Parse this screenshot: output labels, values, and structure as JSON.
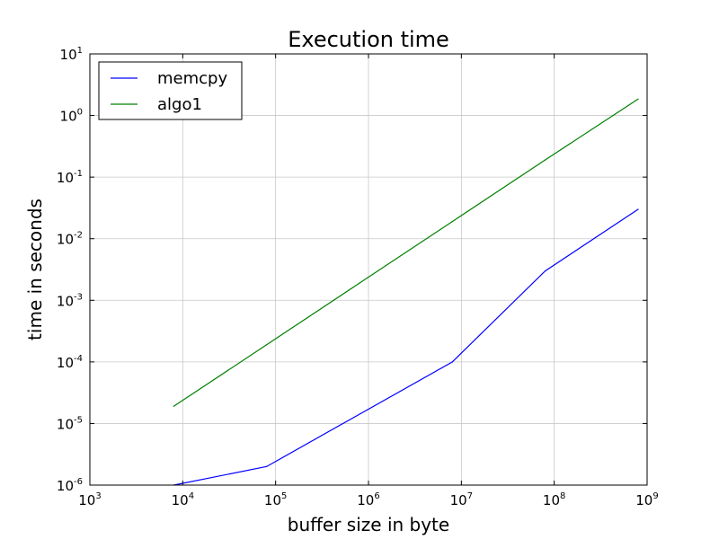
{
  "chart_data": {
    "type": "line",
    "title": "Execution time",
    "xlabel": "buffer size in byte",
    "ylabel": "time in seconds",
    "xscale": "log",
    "yscale": "log",
    "xlim": [
      1000,
      1000000000
    ],
    "ylim": [
      1e-06,
      10
    ],
    "x_ticks": [
      {
        "base": "10",
        "exp": "3",
        "value": 1000
      },
      {
        "base": "10",
        "exp": "4",
        "value": 10000
      },
      {
        "base": "10",
        "exp": "5",
        "value": 100000
      },
      {
        "base": "10",
        "exp": "6",
        "value": 1000000
      },
      {
        "base": "10",
        "exp": "7",
        "value": 10000000
      },
      {
        "base": "10",
        "exp": "8",
        "value": 100000000
      },
      {
        "base": "10",
        "exp": "9",
        "value": 1000000000
      }
    ],
    "y_ticks": [
      {
        "base": "10",
        "exp": "-6",
        "value": 1e-06
      },
      {
        "base": "10",
        "exp": "-5",
        "value": 1e-05
      },
      {
        "base": "10",
        "exp": "-4",
        "value": 0.0001
      },
      {
        "base": "10",
        "exp": "-3",
        "value": 0.001
      },
      {
        "base": "10",
        "exp": "-2",
        "value": 0.01
      },
      {
        "base": "10",
        "exp": "-1",
        "value": 0.1
      },
      {
        "base": "10",
        "exp": "0",
        "value": 1
      },
      {
        "base": "10",
        "exp": "1",
        "value": 10
      }
    ],
    "grid": true,
    "legend_position": "top-left",
    "series": [
      {
        "name": "memcpy",
        "color": "#0000ff",
        "x": [
          8000,
          80000,
          8000000,
          80000000,
          800000000
        ],
        "y": [
          1e-06,
          2e-06,
          0.0001,
          0.003,
          0.03
        ]
      },
      {
        "name": "algo1",
        "color": "#008000",
        "x": [
          8000,
          80000,
          800000,
          8000000,
          80000000,
          800000000
        ],
        "y": [
          1.9e-05,
          0.00019,
          0.0019,
          0.019,
          0.19,
          1.85
        ]
      }
    ]
  }
}
